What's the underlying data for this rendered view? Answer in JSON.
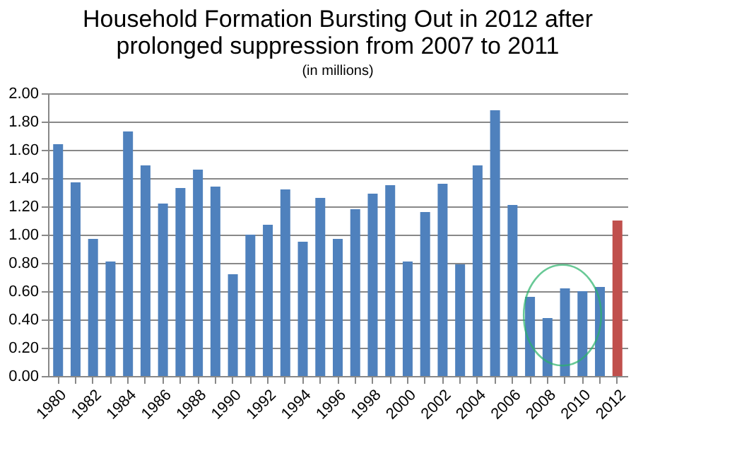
{
  "chart_data": {
    "type": "bar",
    "title": "Household Formation Bursting Out in 2012 after prolonged suppression from 2007 to 2011",
    "subtitle": "(in millions)",
    "categories": [
      "1980",
      null,
      "1982",
      null,
      "1984",
      null,
      "1986",
      null,
      "1988",
      null,
      "1990",
      null,
      "1992",
      null,
      "1994",
      null,
      "1996",
      null,
      "1998",
      null,
      "2000",
      null,
      "2002",
      null,
      "2004",
      null,
      "2006",
      null,
      "2008",
      null,
      "2010",
      null,
      "2012"
    ],
    "values": [
      1.64,
      1.37,
      0.97,
      0.81,
      1.73,
      1.49,
      1.22,
      1.33,
      1.46,
      1.34,
      0.72,
      1.0,
      1.07,
      1.32,
      0.95,
      1.26,
      0.97,
      1.18,
      1.29,
      1.35,
      0.81,
      1.16,
      1.36,
      0.79,
      1.49,
      1.88,
      1.21,
      0.56,
      0.41,
      0.62,
      0.6,
      0.63,
      1.1
    ],
    "colors": [
      "#4f81bd",
      "#4f81bd",
      "#4f81bd",
      "#4f81bd",
      "#4f81bd",
      "#4f81bd",
      "#4f81bd",
      "#4f81bd",
      "#4f81bd",
      "#4f81bd",
      "#4f81bd",
      "#4f81bd",
      "#4f81bd",
      "#4f81bd",
      "#4f81bd",
      "#4f81bd",
      "#4f81bd",
      "#4f81bd",
      "#4f81bd",
      "#4f81bd",
      "#4f81bd",
      "#4f81bd",
      "#4f81bd",
      "#4f81bd",
      "#4f81bd",
      "#4f81bd",
      "#4f81bd",
      "#4f81bd",
      "#4f81bd",
      "#4f81bd",
      "#4f81bd",
      "#4f81bd",
      "#c0504d"
    ],
    "ylim": [
      0,
      2
    ],
    "yticks": [
      {
        "value": 0,
        "label": "0.00"
      },
      {
        "value": 0.2,
        "label": "0.20"
      },
      {
        "value": 0.4,
        "label": "0.40"
      },
      {
        "value": 0.6,
        "label": "0.60"
      },
      {
        "value": 0.8,
        "label": "0.80"
      },
      {
        "value": 1,
        "label": "1.00"
      },
      {
        "value": 1.2,
        "label": "1.20"
      },
      {
        "value": 1.4,
        "label": "1.40"
      },
      {
        "value": 1.6,
        "label": "1.60"
      },
      {
        "value": 1.8,
        "label": "1.80"
      },
      {
        "value": 2,
        "label": "2.00"
      }
    ],
    "grid": "y"
  }
}
